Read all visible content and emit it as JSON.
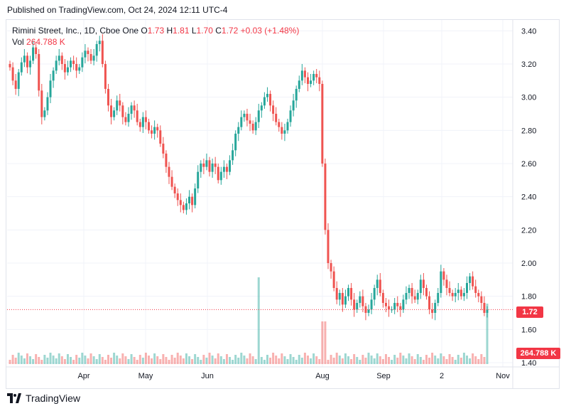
{
  "published": "Published on TradingView.com, Oct 24, 2024 12:11 UTC-4",
  "legend": {
    "symbol": "Rimini Street, Inc., 1D, Cboe One",
    "open_label": "O",
    "open": "1.73",
    "high_label": "H",
    "high": "1.81",
    "low_label": "L",
    "low": "1.70",
    "close_label": "C",
    "close": "1.72",
    "change": "+0.03 (+1.48%)",
    "vol_label": "Vol",
    "vol": "264.788 K"
  },
  "price_tag": "1.72",
  "vol_tag": "264.788 K",
  "footer": {
    "brand": "TradingView"
  },
  "colors": {
    "up": "#26a69a",
    "down": "#ef5350",
    "grid": "#f0f3fa",
    "last_price": "#f23645"
  },
  "chart_data": {
    "type": "candlestick",
    "ylim": [
      1.4,
      3.44
    ],
    "y_ticks": [
      "3.40",
      "3.20",
      "3.00",
      "2.80",
      "2.60",
      "2.40",
      "2.20",
      "2.00",
      "1.80",
      "1.60",
      "1.40"
    ],
    "x_ticks": [
      "Apr",
      "May",
      "Jun",
      "Aug",
      "Sep",
      "2",
      "Nov"
    ],
    "last_price": 1.72,
    "closes": [
      3.18,
      3.1,
      3.05,
      3.15,
      3.21,
      3.25,
      3.18,
      3.22,
      3.3,
      3.26,
      3.04,
      2.88,
      2.92,
      3.0,
      3.1,
      3.16,
      3.22,
      3.25,
      3.2,
      3.15,
      3.18,
      3.22,
      3.2,
      3.16,
      3.18,
      3.24,
      3.28,
      3.26,
      3.22,
      3.25,
      3.32,
      3.34,
      3.2,
      3.05,
      2.95,
      2.88,
      2.92,
      2.98,
      2.95,
      2.88,
      2.85,
      2.9,
      2.95,
      2.92,
      2.85,
      2.82,
      2.88,
      2.85,
      2.8,
      2.78,
      2.82,
      2.8,
      2.72,
      2.66,
      2.58,
      2.52,
      2.46,
      2.42,
      2.38,
      2.35,
      2.32,
      2.36,
      2.4,
      2.35,
      2.45,
      2.55,
      2.6,
      2.58,
      2.62,
      2.55,
      2.6,
      2.58,
      2.5,
      2.55,
      2.58,
      2.55,
      2.62,
      2.68,
      2.78,
      2.82,
      2.88,
      2.9,
      2.86,
      2.84,
      2.8,
      2.85,
      2.92,
      2.95,
      3.0,
      3.02,
      2.95,
      2.9,
      2.85,
      2.82,
      2.78,
      2.8,
      2.85,
      2.92,
      2.98,
      3.05,
      3.1,
      3.16,
      3.12,
      3.08,
      3.1,
      3.14,
      3.12,
      3.08,
      2.6,
      2.2,
      2.0,
      1.95,
      1.85,
      1.78,
      1.82,
      1.75,
      1.8,
      1.85,
      1.78,
      1.72,
      1.76,
      1.8,
      1.74,
      1.7,
      1.72,
      1.78,
      1.85,
      1.9,
      1.82,
      1.76,
      1.74,
      1.72,
      1.72,
      1.76,
      1.74,
      1.72,
      1.78,
      1.82,
      1.85,
      1.8,
      1.78,
      1.82,
      1.9,
      1.85,
      1.8,
      1.72,
      1.7,
      1.76,
      1.82,
      1.95,
      1.9,
      1.85,
      1.82,
      1.8,
      1.82,
      1.84,
      1.8,
      1.82,
      1.88,
      1.92,
      1.86,
      1.82,
      1.8,
      1.76,
      1.7,
      1.72
    ],
    "volume_note": "Vol 264.788 K"
  }
}
